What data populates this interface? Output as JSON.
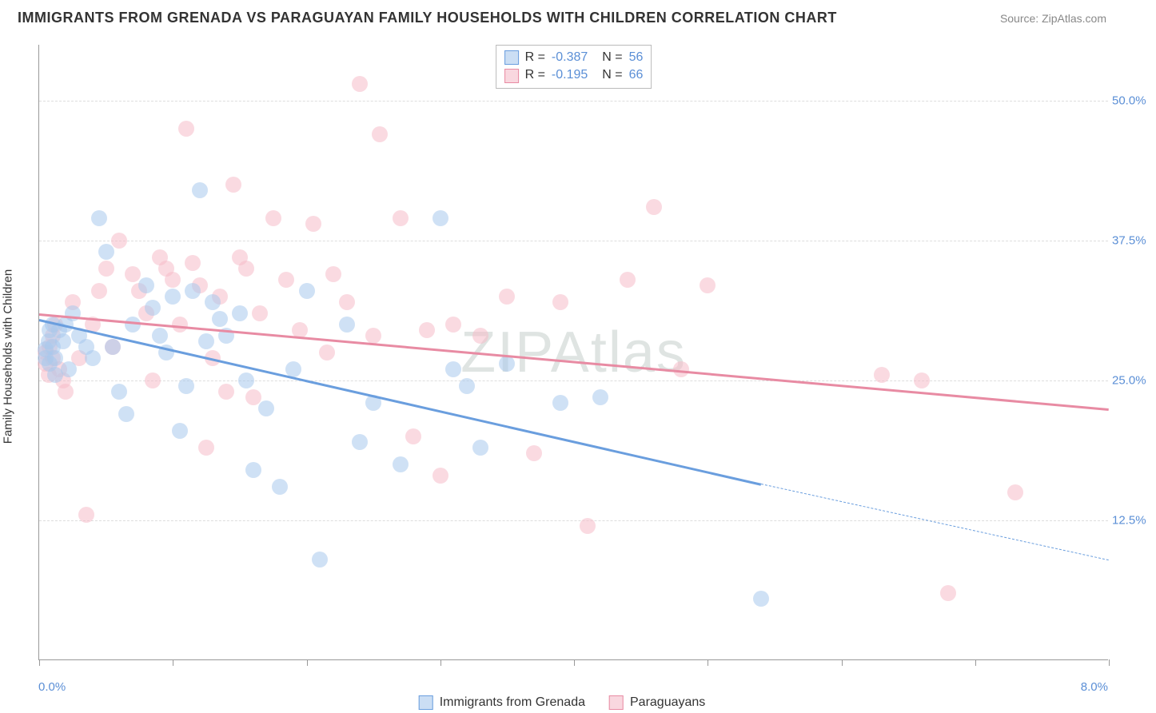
{
  "title": "IMMIGRANTS FROM GRENADA VS PARAGUAYAN FAMILY HOUSEHOLDS WITH CHILDREN CORRELATION CHART",
  "source": "Source: ZipAtlas.com",
  "watermark": "ZIPAtlas",
  "chart": {
    "type": "scatter",
    "background_color": "#ffffff",
    "grid_color": "#dddddd",
    "axis_color": "#999999",
    "tick_label_color": "#5b8fd6",
    "ylabel": "Family Households with Children",
    "ylabel_fontsize": 15,
    "xlim": [
      0.0,
      8.0
    ],
    "ylim": [
      0.0,
      55.0
    ],
    "x_ticks": [
      0,
      1,
      2,
      3,
      4,
      5,
      6,
      7,
      8
    ],
    "x_start_label": "0.0%",
    "x_end_label": "8.0%",
    "y_ticks": [
      {
        "value": 12.5,
        "label": "12.5%"
      },
      {
        "value": 25.0,
        "label": "25.0%"
      },
      {
        "value": 37.5,
        "label": "37.5%"
      },
      {
        "value": 50.0,
        "label": "50.0%"
      }
    ],
    "point_radius": 10,
    "series": [
      {
        "id": "grenada",
        "label": "Immigrants from Grenada",
        "fill_color": "#a8c8ec",
        "stroke_color": "#6a9ede",
        "fill_opacity": 0.55,
        "R": "-0.387",
        "N": "56",
        "trend": {
          "x1": 0.0,
          "y1": 30.5,
          "x2": 5.4,
          "y2": 15.8,
          "extend_x2": 8.0,
          "extend_y2": 9.0,
          "width": 2.5,
          "dash_color": "#6a9ede"
        },
        "points": [
          [
            0.05,
            27.8
          ],
          [
            0.05,
            27.0
          ],
          [
            0.07,
            28.5
          ],
          [
            0.08,
            29.5
          ],
          [
            0.08,
            26.5
          ],
          [
            0.1,
            30.0
          ],
          [
            0.1,
            28.0
          ],
          [
            0.12,
            27.0
          ],
          [
            0.12,
            25.5
          ],
          [
            0.15,
            29.5
          ],
          [
            0.18,
            28.5
          ],
          [
            0.2,
            30.0
          ],
          [
            0.22,
            26.0
          ],
          [
            0.25,
            31.0
          ],
          [
            0.3,
            29.0
          ],
          [
            0.35,
            28.0
          ],
          [
            0.4,
            27.0
          ],
          [
            0.45,
            39.5
          ],
          [
            0.5,
            36.5
          ],
          [
            0.55,
            28.0
          ],
          [
            0.6,
            24.0
          ],
          [
            0.65,
            22.0
          ],
          [
            0.7,
            30.0
          ],
          [
            0.8,
            33.5
          ],
          [
            0.85,
            31.5
          ],
          [
            0.9,
            29.0
          ],
          [
            0.95,
            27.5
          ],
          [
            1.0,
            32.5
          ],
          [
            1.05,
            20.5
          ],
          [
            1.1,
            24.5
          ],
          [
            1.15,
            33.0
          ],
          [
            1.2,
            42.0
          ],
          [
            1.25,
            28.5
          ],
          [
            1.3,
            32.0
          ],
          [
            1.35,
            30.5
          ],
          [
            1.4,
            29.0
          ],
          [
            1.5,
            31.0
          ],
          [
            1.55,
            25.0
          ],
          [
            1.6,
            17.0
          ],
          [
            1.7,
            22.5
          ],
          [
            1.8,
            15.5
          ],
          [
            1.9,
            26.0
          ],
          [
            2.0,
            33.0
          ],
          [
            2.1,
            9.0
          ],
          [
            2.3,
            30.0
          ],
          [
            2.4,
            19.5
          ],
          [
            2.5,
            23.0
          ],
          [
            2.7,
            17.5
          ],
          [
            3.0,
            39.5
          ],
          [
            3.1,
            26.0
          ],
          [
            3.2,
            24.5
          ],
          [
            3.3,
            19.0
          ],
          [
            3.5,
            26.5
          ],
          [
            3.9,
            23.0
          ],
          [
            4.2,
            23.5
          ],
          [
            5.4,
            5.5
          ]
        ]
      },
      {
        "id": "paraguayans",
        "label": "Paraguayans",
        "fill_color": "#f5bcc9",
        "stroke_color": "#e88ba3",
        "fill_opacity": 0.55,
        "R": "-0.195",
        "N": "66",
        "trend": {
          "x1": 0.0,
          "y1": 31.0,
          "x2": 8.0,
          "y2": 22.5,
          "width": 2.5
        },
        "points": [
          [
            0.05,
            27.5
          ],
          [
            0.05,
            26.5
          ],
          [
            0.07,
            25.5
          ],
          [
            0.08,
            28.0
          ],
          [
            0.1,
            29.0
          ],
          [
            0.1,
            27.0
          ],
          [
            0.12,
            30.0
          ],
          [
            0.15,
            26.0
          ],
          [
            0.18,
            25.0
          ],
          [
            0.2,
            24.0
          ],
          [
            0.25,
            32.0
          ],
          [
            0.3,
            27.0
          ],
          [
            0.35,
            13.0
          ],
          [
            0.4,
            30.0
          ],
          [
            0.45,
            33.0
          ],
          [
            0.5,
            35.0
          ],
          [
            0.55,
            28.0
          ],
          [
            0.6,
            37.5
          ],
          [
            0.7,
            34.5
          ],
          [
            0.75,
            33.0
          ],
          [
            0.8,
            31.0
          ],
          [
            0.85,
            25.0
          ],
          [
            0.9,
            36.0
          ],
          [
            0.95,
            35.0
          ],
          [
            1.0,
            34.0
          ],
          [
            1.05,
            30.0
          ],
          [
            1.1,
            47.5
          ],
          [
            1.15,
            35.5
          ],
          [
            1.2,
            33.5
          ],
          [
            1.25,
            19.0
          ],
          [
            1.3,
            27.0
          ],
          [
            1.35,
            32.5
          ],
          [
            1.4,
            24.0
          ],
          [
            1.45,
            42.5
          ],
          [
            1.5,
            36.0
          ],
          [
            1.55,
            35.0
          ],
          [
            1.6,
            23.5
          ],
          [
            1.65,
            31.0
          ],
          [
            1.75,
            39.5
          ],
          [
            1.85,
            34.0
          ],
          [
            1.95,
            29.5
          ],
          [
            2.05,
            39.0
          ],
          [
            2.15,
            27.5
          ],
          [
            2.2,
            34.5
          ],
          [
            2.3,
            32.0
          ],
          [
            2.4,
            51.5
          ],
          [
            2.5,
            29.0
          ],
          [
            2.55,
            47.0
          ],
          [
            2.7,
            39.5
          ],
          [
            2.8,
            20.0
          ],
          [
            2.9,
            29.5
          ],
          [
            3.0,
            16.5
          ],
          [
            3.1,
            30.0
          ],
          [
            3.3,
            29.0
          ],
          [
            3.5,
            32.5
          ],
          [
            3.7,
            18.5
          ],
          [
            3.9,
            32.0
          ],
          [
            4.1,
            12.0
          ],
          [
            4.4,
            34.0
          ],
          [
            4.6,
            40.5
          ],
          [
            4.8,
            26.0
          ],
          [
            5.0,
            33.5
          ],
          [
            6.3,
            25.5
          ],
          [
            6.6,
            25.0
          ],
          [
            6.8,
            6.0
          ],
          [
            7.3,
            15.0
          ]
        ]
      }
    ]
  }
}
